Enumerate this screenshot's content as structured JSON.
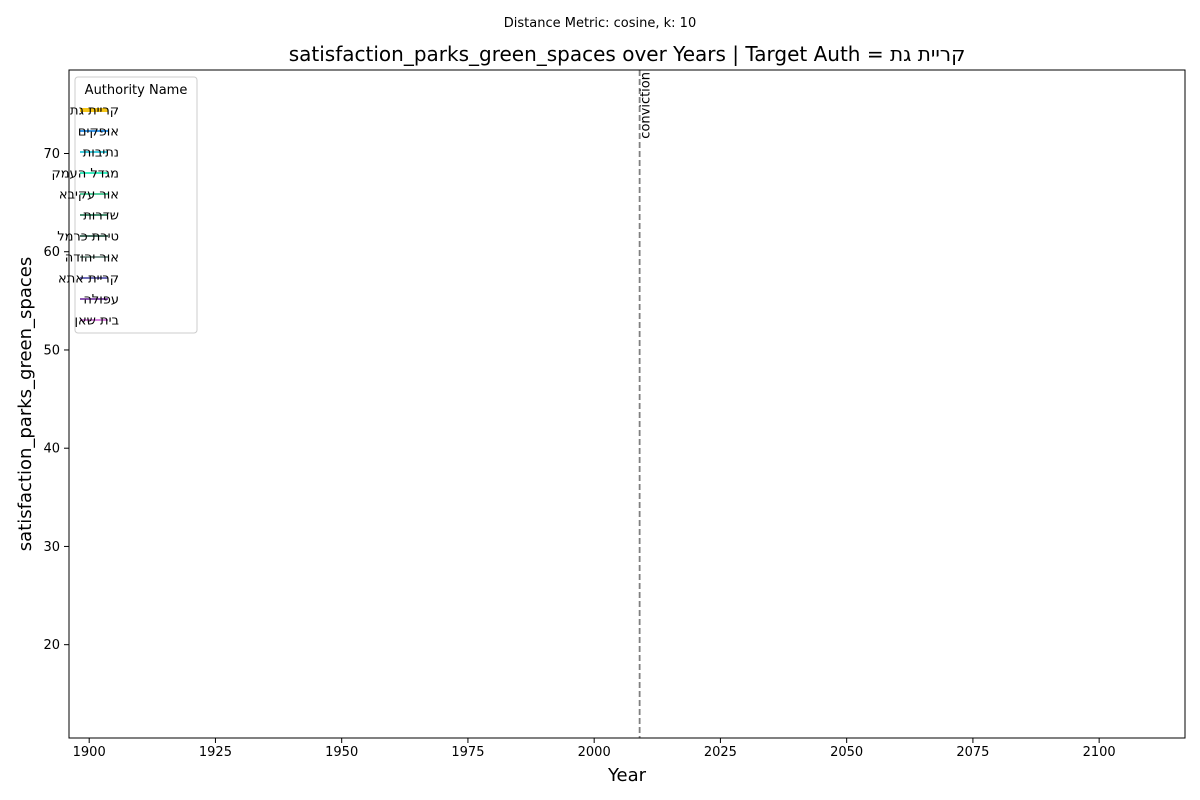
{
  "chart_data": {
    "type": "line",
    "suptitle": "Distance Metric: cosine, k: 10",
    "title": "satisfaction_parks_green_spaces over Years | Target Auth = קריית גת",
    "xlabel": "Year",
    "ylabel": "satisfaction_parks_green_spaces",
    "xlim": [
      1896,
      2117
    ],
    "ylim": [
      10.5,
      78.5
    ],
    "x_ticks": [
      1900,
      1925,
      1950,
      1975,
      2000,
      2025,
      2050,
      2075,
      2100
    ],
    "y_ticks": [
      20,
      30,
      40,
      50,
      60,
      70
    ],
    "grid": false,
    "legend": {
      "title": "Authority Name",
      "placement": "top-left"
    },
    "series": [
      {
        "name": "קריית גת",
        "color": "#f5c518",
        "emphasis": true,
        "x": [],
        "y": []
      },
      {
        "name": "אופקים",
        "color": "#1e88e5",
        "x": [],
        "y": []
      },
      {
        "name": "נתיבות",
        "color": "#26c6da",
        "x": [],
        "y": []
      },
      {
        "name": "מגדל העמק",
        "color": "#1de9b6",
        "x": [],
        "y": []
      },
      {
        "name": "אור עקיבא",
        "color": "#3ec48e",
        "x": [],
        "y": []
      },
      {
        "name": "שדרות",
        "color": "#2e7d5b",
        "x": [],
        "y": []
      },
      {
        "name": "טירת כרמל",
        "color": "#2f5d4b",
        "x": [],
        "y": []
      },
      {
        "name": "אור יהודה",
        "color": "#6f8a80",
        "x": [],
        "y": []
      },
      {
        "name": "קריית אתא",
        "color": "#5c5ab0",
        "x": [],
        "y": []
      },
      {
        "name": "עפולה",
        "color": "#7b3fa6",
        "x": [],
        "y": []
      },
      {
        "name": "בית שאן",
        "color": "#d070d8",
        "x": [],
        "y": []
      }
    ],
    "annotations": [
      {
        "type": "vline",
        "x": 2009,
        "label": "conviction",
        "style": "dashed",
        "color": "#808080"
      }
    ]
  }
}
